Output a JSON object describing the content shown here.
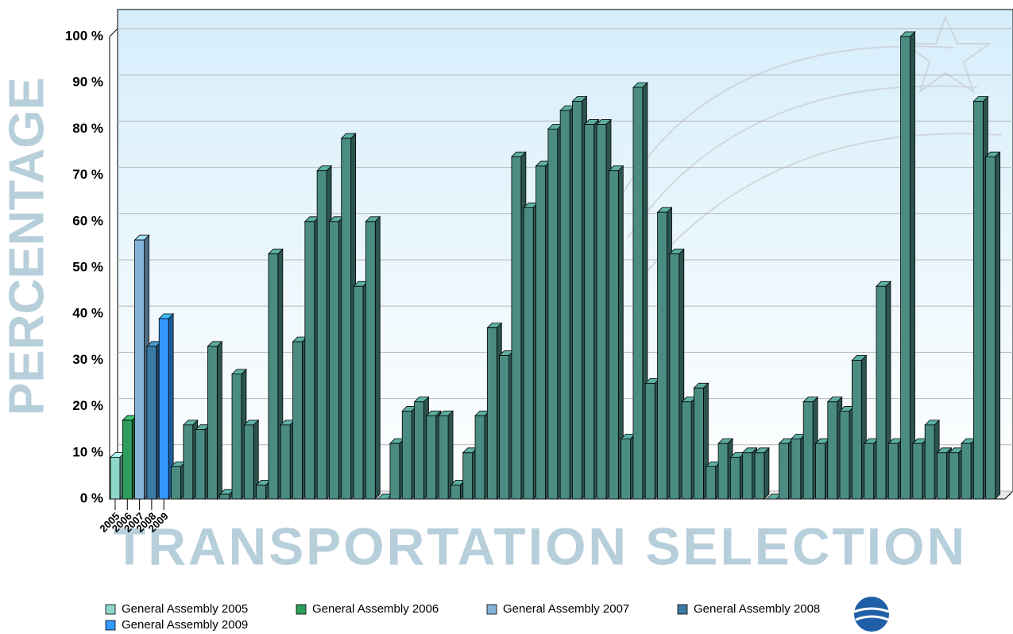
{
  "chart_data": {
    "type": "bar3d",
    "xlabel": "TRANSPORTATION SELECTION",
    "ylabel": "PERCENTAGE",
    "categories": [
      "2005",
      "2006",
      "2007",
      "2008",
      "2009",
      null,
      null,
      null,
      null,
      null,
      null,
      null,
      null,
      null,
      null,
      null,
      null,
      null,
      null,
      null,
      null,
      null,
      null,
      null,
      null,
      null,
      null,
      null,
      null,
      null,
      null,
      null,
      null,
      null,
      null,
      null,
      null,
      null,
      null,
      null,
      null,
      null,
      null,
      null,
      null,
      null,
      null,
      null,
      null,
      null,
      null,
      null,
      null,
      null,
      null,
      null,
      null,
      null,
      null,
      null,
      null,
      null,
      null,
      null,
      null,
      null,
      null,
      null,
      null,
      null,
      null,
      null,
      null
    ],
    "values": [
      9,
      17,
      56,
      33,
      39,
      7,
      16,
      15,
      33,
      1,
      27,
      16,
      3,
      53,
      16,
      34,
      60,
      71,
      60,
      78,
      46,
      60,
      0,
      12,
      19,
      21,
      18,
      18,
      3,
      10,
      18,
      37,
      31,
      74,
      63,
      72,
      80,
      84,
      86,
      81,
      81,
      71,
      13,
      89,
      25,
      62,
      53,
      21,
      24,
      7,
      12,
      9,
      10,
      10,
      0,
      12,
      13,
      21,
      12,
      21,
      19,
      30,
      12,
      46,
      12,
      100,
      12,
      16,
      10,
      10,
      12,
      86,
      74
    ],
    "colors": [
      "#8fd6ca",
      "#2f9e5c",
      "#84b4d9",
      "#3a7aa3",
      "#3399ff",
      "#4a8c82",
      "#4a8c82",
      "#4a8c82",
      "#4a8c82",
      "#4a8c82",
      "#4a8c82",
      "#4a8c82",
      "#4a8c82",
      "#4a8c82",
      "#4a8c82",
      "#4a8c82",
      "#4a8c82",
      "#4a8c82",
      "#4a8c82",
      "#4a8c82",
      "#4a8c82",
      "#4a8c82",
      "#4a8c82",
      "#4a8c82",
      "#4a8c82",
      "#4a8c82",
      "#4a8c82",
      "#4a8c82",
      "#4a8c82",
      "#4a8c82",
      "#4a8c82",
      "#4a8c82",
      "#4a8c82",
      "#4a8c82",
      "#4a8c82",
      "#4a8c82",
      "#4a8c82",
      "#4a8c82",
      "#4a8c82",
      "#4a8c82",
      "#4a8c82",
      "#4a8c82",
      "#4a8c82",
      "#4a8c82",
      "#4a8c82",
      "#4a8c82",
      "#4a8c82",
      "#4a8c82",
      "#4a8c82",
      "#4a8c82",
      "#4a8c82",
      "#4a8c82",
      "#4a8c82",
      "#4a8c82",
      "#4a8c82",
      "#4a8c82",
      "#4a8c82",
      "#4a8c82",
      "#4a8c82",
      "#4a8c82",
      "#4a8c82",
      "#4a8c82",
      "#4a8c82",
      "#4a8c82",
      "#4a8c82",
      "#4a8c82",
      "#4a8c82",
      "#4a8c82",
      "#4a8c82",
      "#4a8c82",
      "#4a8c82",
      "#4a8c82",
      "#4a8c82"
    ],
    "legend": [
      {
        "name": "General Assembly 2005",
        "color": "#8fd6ca"
      },
      {
        "name": "General Assembly 2006",
        "color": "#2f9e5c"
      },
      {
        "name": "General Assembly 2007",
        "color": "#84b4d9"
      },
      {
        "name": "General Assembly 2008",
        "color": "#3a7aa3"
      },
      {
        "name": "General Assembly 2009",
        "color": "#3399ff"
      }
    ],
    "ylim": [
      0,
      100
    ],
    "yticks": [
      {
        "value": 0,
        "label": "0 %"
      },
      {
        "value": 10,
        "label": "10 %"
      },
      {
        "value": 20,
        "label": "20 %"
      },
      {
        "value": 30,
        "label": "30 %"
      },
      {
        "value": 40,
        "label": "40 %"
      },
      {
        "value": 50,
        "label": "50 %"
      },
      {
        "value": 60,
        "label": "60 %"
      },
      {
        "value": 70,
        "label": "70 %"
      },
      {
        "value": 80,
        "label": "80 %"
      },
      {
        "value": 90,
        "label": "90 %"
      },
      {
        "value": 100,
        "label": "100 %"
      }
    ],
    "grid": true
  }
}
